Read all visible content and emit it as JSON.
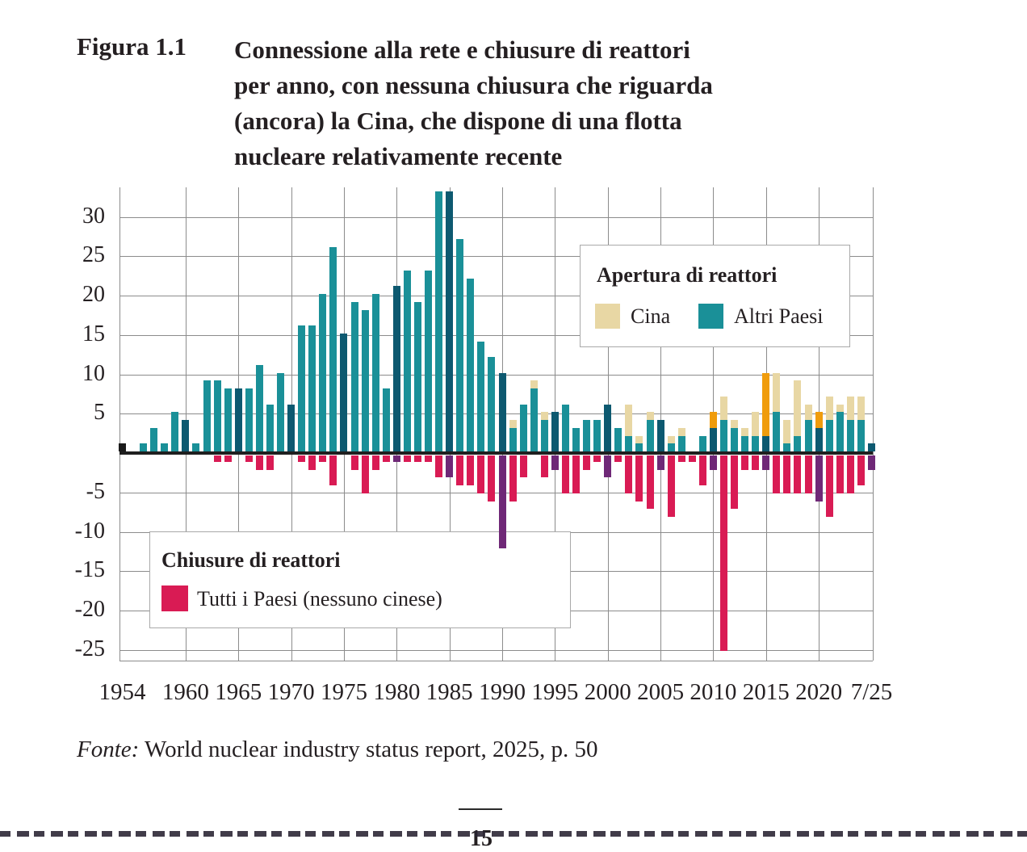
{
  "figure": {
    "label": "Figura 1.1",
    "title_lines": [
      "Connessione alla rete e chiusure di reattori",
      "per anno, con nessuna chiusura che riguarda",
      "(ancora) la Cina, che dispone di una flotta",
      "nucleare relativamente recente"
    ]
  },
  "legend_openings": {
    "title": "Apertura di reattori",
    "items": [
      {
        "label": "Cina",
        "color": "#e8d7a4"
      },
      {
        "label": "Altri Paesi",
        "color": "#1a9098"
      }
    ]
  },
  "legend_closures": {
    "title": "Chiusure di reattori",
    "items": [
      {
        "label": "Tutti i Paesi (nessuno cinese)",
        "color": "#d91b54"
      }
    ]
  },
  "source": {
    "prefix": "Fonte:",
    "text": " World nuclear industry status report, 2025, p. 50"
  },
  "page_number": "15",
  "chart_data": {
    "type": "bar",
    "stacked": true,
    "title": "Connessione alla rete e chiusure di reattori per anno",
    "grid": true,
    "legend_position": "inside",
    "ylim": [
      -25,
      33
    ],
    "y_ticks": [
      30,
      25,
      20,
      15,
      10,
      5,
      -5,
      -10,
      -15,
      -20,
      -25
    ],
    "x_tick_labels": [
      {
        "x": 1954,
        "label": "1954"
      },
      {
        "x": 1960,
        "label": "1960"
      },
      {
        "x": 1965,
        "label": "1965"
      },
      {
        "x": 1970,
        "label": "1970"
      },
      {
        "x": 1975,
        "label": "1975"
      },
      {
        "x": 1980,
        "label": "1980"
      },
      {
        "x": 1985,
        "label": "1985"
      },
      {
        "x": 1990,
        "label": "1990"
      },
      {
        "x": 1995,
        "label": "1995"
      },
      {
        "x": 2000,
        "label": "2000"
      },
      {
        "x": 2005,
        "label": "2005"
      },
      {
        "x": 2010,
        "label": "2010"
      },
      {
        "x": 2015,
        "label": "2015"
      },
      {
        "x": 2020,
        "label": "2020"
      },
      {
        "x": 2025,
        "label": "7/25"
      }
    ],
    "x": [
      1954,
      1955,
      1956,
      1957,
      1958,
      1959,
      1960,
      1961,
      1962,
      1963,
      1964,
      1965,
      1966,
      1967,
      1968,
      1969,
      1970,
      1971,
      1972,
      1973,
      1974,
      1975,
      1976,
      1977,
      1978,
      1979,
      1980,
      1981,
      1982,
      1983,
      1984,
      1985,
      1986,
      1987,
      1988,
      1989,
      1990,
      1991,
      1992,
      1993,
      1994,
      1995,
      1996,
      1997,
      1998,
      1999,
      2000,
      2001,
      2002,
      2003,
      2004,
      2005,
      2006,
      2007,
      2008,
      2009,
      2010,
      2011,
      2012,
      2013,
      2014,
      2015,
      2016,
      2017,
      2018,
      2019,
      2020,
      2021,
      2022,
      2023,
      2024,
      2025
    ],
    "series": [
      {
        "name": "Apertura - Altri Paesi",
        "color": "#1a9098",
        "color_quinquennale": "#0d5970",
        "values": [
          1,
          0,
          1,
          3,
          1,
          5,
          4,
          1,
          9,
          9,
          8,
          8,
          8,
          11,
          6,
          10,
          6,
          16,
          16,
          20,
          26,
          15,
          19,
          18,
          20,
          8,
          21,
          23,
          19,
          23,
          33,
          33,
          27,
          22,
          14,
          12,
          10,
          3,
          6,
          8,
          4,
          5,
          6,
          3,
          4,
          4,
          6,
          3,
          2,
          1,
          4,
          4,
          1,
          2,
          0,
          2,
          3,
          4,
          3,
          2,
          2,
          2,
          5,
          1,
          2,
          4,
          3,
          4,
          5,
          4,
          4,
          1
        ]
      },
      {
        "name": "Apertura - Cina",
        "color": "#e8d7a4",
        "color_quinquennale": "#f09c0c",
        "values": [
          0,
          0,
          0,
          0,
          0,
          0,
          0,
          0,
          0,
          0,
          0,
          0,
          0,
          0,
          0,
          0,
          0,
          0,
          0,
          0,
          0,
          0,
          0,
          0,
          0,
          0,
          0,
          0,
          0,
          0,
          0,
          0,
          0,
          0,
          0,
          0,
          0,
          1,
          0,
          1,
          1,
          0,
          0,
          0,
          0,
          0,
          0,
          0,
          4,
          1,
          1,
          0,
          1,
          1,
          0,
          0,
          2,
          3,
          1,
          1,
          3,
          8,
          5,
          3,
          7,
          2,
          2,
          3,
          1,
          3,
          3,
          0
        ]
      },
      {
        "name": "Chiusure - Tutti i Paesi (nessuno cinese)",
        "color": "#d91b54",
        "color_quinquennale": "#6f2877",
        "values": [
          0,
          0,
          0,
          0,
          0,
          0,
          0,
          0,
          0,
          -1,
          -1,
          0,
          -1,
          -2,
          -2,
          0,
          0,
          -1,
          -2,
          -1,
          -4,
          0,
          -2,
          -5,
          -2,
          -1,
          -1,
          -1,
          -1,
          -1,
          -3,
          -3,
          -4,
          -4,
          -5,
          -6,
          -12,
          -6,
          -3,
          0,
          -3,
          -2,
          -5,
          -5,
          -2,
          -1,
          -3,
          -1,
          -5,
          -6,
          -7,
          -2,
          -8,
          -1,
          -1,
          -4,
          -2,
          -25,
          -7,
          -2,
          -2,
          -2,
          -5,
          -5,
          -5,
          -5,
          -6,
          -8,
          -5,
          -5,
          -4,
          -2
        ]
      }
    ],
    "first_bar": {
      "x": 1954,
      "value": 1,
      "color": "#1a1a1a",
      "note": "primo reattore, barra nera"
    },
    "quinquennial_rule": "le barre sugli anni delle linee di griglia (1960, 1965, ... 2025) usano la tonalita scura",
    "colors": {
      "grid": "#8c8c8c",
      "zero_line": "#1f1f1f",
      "text": "#241f21"
    }
  }
}
